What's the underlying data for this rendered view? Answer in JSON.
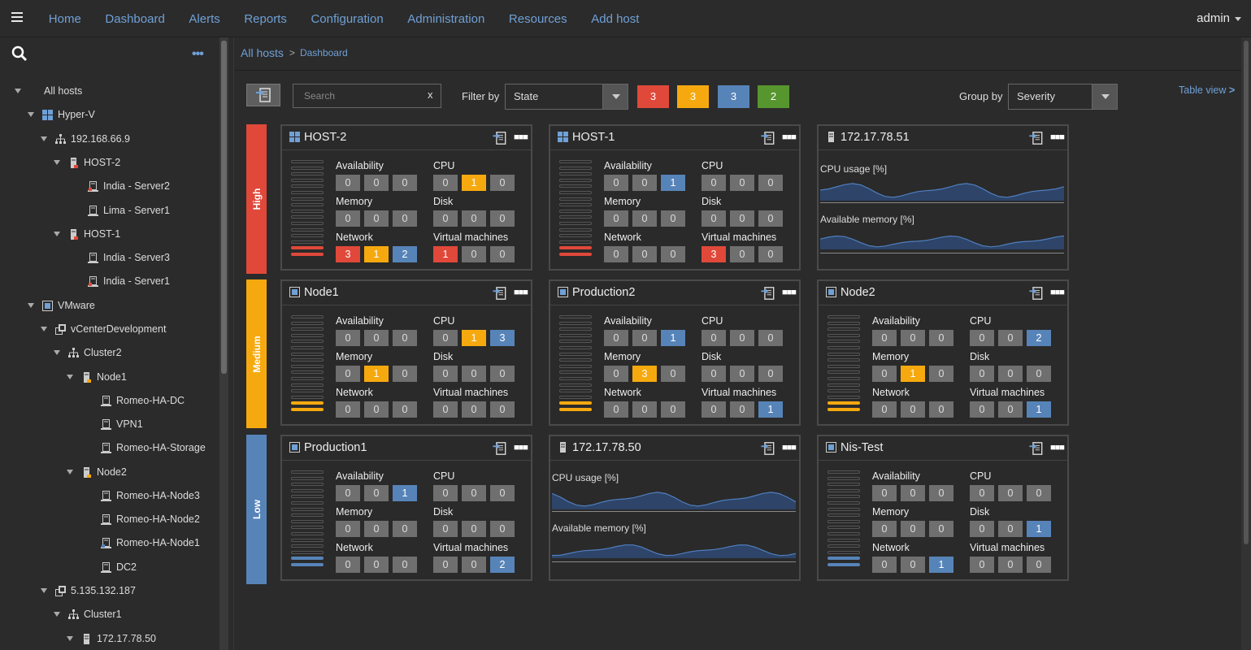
{
  "nav": {
    "items": [
      "Home",
      "Dashboard",
      "Alerts",
      "Reports",
      "Configuration",
      "Administration",
      "Resources",
      "Add host"
    ],
    "user": "admin"
  },
  "tree": [
    {
      "label": "All hosts",
      "level": 0,
      "icon": "none",
      "toggle": true
    },
    {
      "label": "Hyper-V",
      "level": 1,
      "icon": "windows-icon",
      "toggle": true
    },
    {
      "label": "192.168.66.9",
      "level": 2,
      "icon": "network-icon",
      "toggle": true
    },
    {
      "label": "HOST-2",
      "level": 3,
      "icon": "server-red-icon",
      "toggle": true
    },
    {
      "label": "India - Server2",
      "level": 4,
      "icon": "vm-red-icon",
      "toggle": false
    },
    {
      "label": "Lima - Server1",
      "level": 4,
      "icon": "vm-icon",
      "toggle": false
    },
    {
      "label": "HOST-1",
      "level": 3,
      "icon": "server-red-icon",
      "toggle": true
    },
    {
      "label": "India - Server3",
      "level": 4,
      "icon": "vm-icon",
      "toggle": false
    },
    {
      "label": "India - Server1",
      "level": 4,
      "icon": "vm-red-icon",
      "toggle": false
    },
    {
      "label": "VMware",
      "level": 1,
      "icon": "vmware-icon",
      "toggle": true
    },
    {
      "label": "vCenterDevelopment",
      "level": 2,
      "icon": "vcenter-icon",
      "toggle": true
    },
    {
      "label": "Cluster2",
      "level": 3,
      "icon": "network-icon",
      "toggle": true
    },
    {
      "label": "Node1",
      "level": 4,
      "icon": "server-orange-icon",
      "toggle": true
    },
    {
      "label": "Romeo-HA-DC",
      "level": 5,
      "icon": "vm-icon",
      "toggle": false
    },
    {
      "label": "VPN1",
      "level": 5,
      "icon": "vm-icon",
      "toggle": false
    },
    {
      "label": "Romeo-HA-Storage",
      "level": 5,
      "icon": "vm-icon",
      "toggle": false
    },
    {
      "label": "Node2",
      "level": 4,
      "icon": "server-orange-icon",
      "toggle": true
    },
    {
      "label": "Romeo-HA-Node3",
      "level": 5,
      "icon": "vm-icon",
      "toggle": false
    },
    {
      "label": "Romeo-HA-Node2",
      "level": 5,
      "icon": "vm-icon",
      "toggle": false
    },
    {
      "label": "Romeo-HA-Node1",
      "level": 5,
      "icon": "vm-blue-icon",
      "toggle": false
    },
    {
      "label": "DC2",
      "level": 5,
      "icon": "vm-icon",
      "toggle": false
    },
    {
      "label": "5.135.132.187",
      "level": 2,
      "icon": "vcenter-icon",
      "toggle": true
    },
    {
      "label": "Cluster1",
      "level": 3,
      "icon": "network-icon",
      "toggle": true
    },
    {
      "label": "172.17.78.50",
      "level": 4,
      "icon": "server-icon",
      "toggle": true
    }
  ],
  "breadcrumb": {
    "root": "All hosts",
    "current": "Dashboard"
  },
  "toolbar": {
    "search_placeholder": "Search",
    "search_clear": "x",
    "filter_label": "Filter by",
    "filter_value": "State",
    "counts": [
      {
        "value": "3",
        "color": "#e0483a"
      },
      {
        "value": "3",
        "color": "#f6a90f"
      },
      {
        "value": "3",
        "color": "#5784b8"
      },
      {
        "value": "2",
        "color": "#57962e"
      }
    ],
    "group_label": "Group by",
    "group_value": "Severity",
    "table_view": "Table view"
  },
  "colors": {
    "red": "#e0483a",
    "orange": "#f6a90f",
    "blue": "#5784b8",
    "gray": "#6f6f6f"
  },
  "severity_groups": [
    {
      "label": "High",
      "color": "#e0483a"
    },
    {
      "label": "Medium",
      "color": "#f6a90f"
    },
    {
      "label": "Low",
      "color": "#5784b8"
    }
  ],
  "section_labels": {
    "availability": "Availability",
    "cpu": "CPU",
    "memory": "Memory",
    "disk": "Disk",
    "network": "Network",
    "vms": "Virtual machines",
    "cpu_usage": "CPU usage [%]",
    "available_memory": "Available memory [%]"
  },
  "cards": [
    {
      "name": "HOST-2",
      "icon": "windows-icon",
      "kind": "host",
      "meter": "red",
      "availability": [
        "0",
        "0",
        "0"
      ],
      "cpu": [
        "0",
        "1",
        "0"
      ],
      "memory": [
        "0",
        "0",
        "0"
      ],
      "disk": [
        "0",
        "0",
        "0"
      ],
      "network": [
        "3",
        "1",
        "2"
      ],
      "vms": [
        "1",
        "0",
        "0"
      ]
    },
    {
      "name": "HOST-1",
      "icon": "windows-icon",
      "kind": "host",
      "meter": "red",
      "availability": [
        "0",
        "0",
        "1"
      ],
      "cpu": [
        "0",
        "0",
        "0"
      ],
      "memory": [
        "0",
        "0",
        "0"
      ],
      "disk": [
        "0",
        "0",
        "0"
      ],
      "network": [
        "0",
        "0",
        "0"
      ],
      "vms": [
        "3",
        "0",
        "0"
      ]
    },
    {
      "name": "172.17.78.51",
      "icon": "server-icon",
      "kind": "metric"
    },
    {
      "name": "Node1",
      "icon": "vmware-icon",
      "kind": "host",
      "meter": "orange",
      "availability": [
        "0",
        "0",
        "0"
      ],
      "cpu": [
        "0",
        "1",
        "3"
      ],
      "memory": [
        "0",
        "1",
        "0"
      ],
      "disk": [
        "0",
        "0",
        "0"
      ],
      "network": [
        "0",
        "0",
        "0"
      ],
      "vms": [
        "0",
        "0",
        "0"
      ]
    },
    {
      "name": "Production2",
      "icon": "vmware-icon",
      "kind": "host",
      "meter": "orange",
      "availability": [
        "0",
        "0",
        "1"
      ],
      "cpu": [
        "0",
        "0",
        "0"
      ],
      "memory": [
        "0",
        "3",
        "0"
      ],
      "disk": [
        "0",
        "0",
        "0"
      ],
      "network": [
        "0",
        "0",
        "0"
      ],
      "vms": [
        "0",
        "0",
        "1"
      ]
    },
    {
      "name": "Node2",
      "icon": "vmware-icon",
      "kind": "host",
      "meter": "orange",
      "availability": [
        "0",
        "0",
        "0"
      ],
      "cpu": [
        "0",
        "0",
        "2"
      ],
      "memory": [
        "0",
        "1",
        "0"
      ],
      "disk": [
        "0",
        "0",
        "0"
      ],
      "network": [
        "0",
        "0",
        "0"
      ],
      "vms": [
        "0",
        "0",
        "1"
      ]
    },
    {
      "name": "Production1",
      "icon": "vmware-icon",
      "kind": "host",
      "meter": "blue",
      "availability": [
        "0",
        "0",
        "1"
      ],
      "cpu": [
        "0",
        "0",
        "0"
      ],
      "memory": [
        "0",
        "0",
        "0"
      ],
      "disk": [
        "0",
        "0",
        "0"
      ],
      "network": [
        "0",
        "0",
        "0"
      ],
      "vms": [
        "0",
        "0",
        "2"
      ]
    },
    {
      "name": "172.17.78.50",
      "icon": "server-icon",
      "kind": "metric"
    },
    {
      "name": "Nis-Test",
      "icon": "vmware-icon",
      "kind": "host",
      "meter": "blue",
      "availability": [
        "0",
        "0",
        "0"
      ],
      "cpu": [
        "0",
        "0",
        "0"
      ],
      "memory": [
        "0",
        "0",
        "0"
      ],
      "disk": [
        "0",
        "0",
        "1"
      ],
      "network": [
        "0",
        "0",
        "1"
      ],
      "vms": [
        "0",
        "0",
        "0"
      ]
    }
  ]
}
